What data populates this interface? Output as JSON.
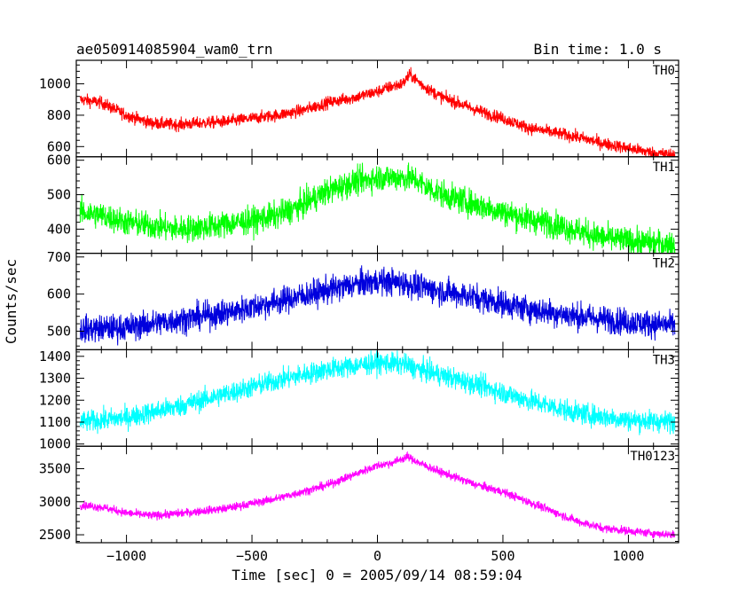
{
  "chart_data": {
    "type": "line",
    "title_left": "ae050914085904_wam0_trn",
    "title_right": "Bin time: 1.0 s",
    "xlabel": "Time [sec] 0 = 2005/09/14 08:59:04",
    "ylabel": "Counts/sec",
    "xlim": [
      -1200,
      1200
    ],
    "x_ticks": [
      -1000,
      -500,
      0,
      500,
      1000
    ],
    "x_tick_labels": [
      "−1000",
      "−500",
      "0",
      "500",
      "1000"
    ],
    "bin_time_s": 1.0,
    "x_range_data": [
      -1185,
      1185
    ],
    "panels": [
      {
        "name": "TH0",
        "color": "#ff0000",
        "ylim": [
          535,
          1150
        ],
        "y_ticks": [
          600,
          800,
          1000
        ],
        "noise": 28,
        "profile": [
          [
            -1185,
            900
          ],
          [
            -1100,
            880
          ],
          [
            -1000,
            800
          ],
          [
            -900,
            750
          ],
          [
            -800,
            740
          ],
          [
            -600,
            760
          ],
          [
            -400,
            800
          ],
          [
            -300,
            830
          ],
          [
            -200,
            880
          ],
          [
            -100,
            910
          ],
          [
            0,
            950
          ],
          [
            50,
            980
          ],
          [
            100,
            1000
          ],
          [
            130,
            1060
          ],
          [
            180,
            990
          ],
          [
            250,
            920
          ],
          [
            400,
            830
          ],
          [
            500,
            780
          ],
          [
            600,
            720
          ],
          [
            700,
            690
          ],
          [
            800,
            660
          ],
          [
            900,
            620
          ],
          [
            1000,
            590
          ],
          [
            1100,
            560
          ],
          [
            1185,
            545
          ]
        ]
      },
      {
        "name": "TH1",
        "color": "#00ff00",
        "ylim": [
          330,
          610
        ],
        "y_ticks": [
          400,
          500,
          600
        ],
        "noise": 28,
        "profile": [
          [
            -1185,
            450
          ],
          [
            -1100,
            440
          ],
          [
            -1000,
            420
          ],
          [
            -900,
            410
          ],
          [
            -800,
            400
          ],
          [
            -700,
            405
          ],
          [
            -600,
            415
          ],
          [
            -500,
            425
          ],
          [
            -400,
            440
          ],
          [
            -300,
            470
          ],
          [
            -200,
            510
          ],
          [
            -100,
            535
          ],
          [
            0,
            550
          ],
          [
            100,
            550
          ],
          [
            150,
            545
          ],
          [
            200,
            520
          ],
          [
            300,
            490
          ],
          [
            400,
            470
          ],
          [
            500,
            450
          ],
          [
            600,
            430
          ],
          [
            700,
            415
          ],
          [
            800,
            395
          ],
          [
            900,
            375
          ],
          [
            1000,
            365
          ],
          [
            1100,
            360
          ],
          [
            1185,
            355
          ]
        ]
      },
      {
        "name": "TH2",
        "color": "#0000dd",
        "ylim": [
          450,
          710
        ],
        "y_ticks": [
          500,
          600,
          700
        ],
        "noise": 26,
        "profile": [
          [
            -1185,
            505
          ],
          [
            -1000,
            510
          ],
          [
            -800,
            530
          ],
          [
            -600,
            550
          ],
          [
            -400,
            580
          ],
          [
            -200,
            610
          ],
          [
            -100,
            625
          ],
          [
            0,
            635
          ],
          [
            100,
            630
          ],
          [
            200,
            615
          ],
          [
            400,
            590
          ],
          [
            600,
            560
          ],
          [
            800,
            540
          ],
          [
            1000,
            525
          ],
          [
            1185,
            515
          ]
        ]
      },
      {
        "name": "TH3",
        "color": "#00ffff",
        "ylim": [
          990,
          1430
        ],
        "y_ticks": [
          1000,
          1100,
          1200,
          1300,
          1400
        ],
        "noise": 35,
        "profile": [
          [
            -1185,
            1100
          ],
          [
            -1000,
            1120
          ],
          [
            -800,
            1170
          ],
          [
            -600,
            1230
          ],
          [
            -400,
            1290
          ],
          [
            -200,
            1340
          ],
          [
            0,
            1370
          ],
          [
            100,
            1365
          ],
          [
            200,
            1330
          ],
          [
            400,
            1270
          ],
          [
            600,
            1200
          ],
          [
            800,
            1140
          ],
          [
            1000,
            1110
          ],
          [
            1185,
            1100
          ]
        ]
      },
      {
        "name": "TH0123",
        "color": "#ff00ff",
        "ylim": [
          2380,
          3840
        ],
        "y_ticks": [
          2500,
          3000,
          3500
        ],
        "noise": 45,
        "profile": [
          [
            -1185,
            2950
          ],
          [
            -1100,
            2920
          ],
          [
            -1000,
            2830
          ],
          [
            -900,
            2790
          ],
          [
            -800,
            2820
          ],
          [
            -600,
            2900
          ],
          [
            -400,
            3050
          ],
          [
            -200,
            3250
          ],
          [
            -100,
            3400
          ],
          [
            0,
            3550
          ],
          [
            50,
            3580
          ],
          [
            120,
            3680
          ],
          [
            170,
            3580
          ],
          [
            250,
            3450
          ],
          [
            400,
            3250
          ],
          [
            500,
            3150
          ],
          [
            600,
            3000
          ],
          [
            700,
            2850
          ],
          [
            800,
            2700
          ],
          [
            900,
            2600
          ],
          [
            1000,
            2560
          ],
          [
            1100,
            2520
          ],
          [
            1185,
            2500
          ]
        ]
      }
    ]
  }
}
